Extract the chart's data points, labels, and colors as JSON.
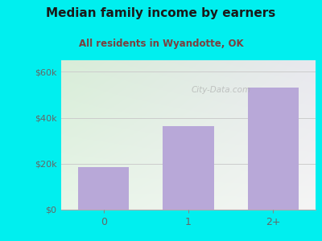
{
  "title": "Median family income by earners",
  "subtitle": "All residents in Wyandotte, OK",
  "categories": [
    "0",
    "1",
    "2+"
  ],
  "values": [
    18500,
    36500,
    53000
  ],
  "bar_color": "#b8a8d8",
  "outer_bg": "#00efef",
  "plot_bg_topleft": "#d8edd8",
  "plot_bg_bottomright": "#f5f5f5",
  "title_color": "#1a1a1a",
  "subtitle_color": "#7b4040",
  "tick_color": "#666666",
  "yticks": [
    0,
    20000,
    40000,
    60000
  ],
  "ytick_labels": [
    "$0",
    "$20k",
    "$40k",
    "$60k"
  ],
  "ylim": [
    0,
    65000
  ],
  "title_fontsize": 11,
  "subtitle_fontsize": 8.5,
  "watermark": "City-Data.com",
  "watermark_color": "#aaaaaa",
  "grid_color": "#cccccc"
}
